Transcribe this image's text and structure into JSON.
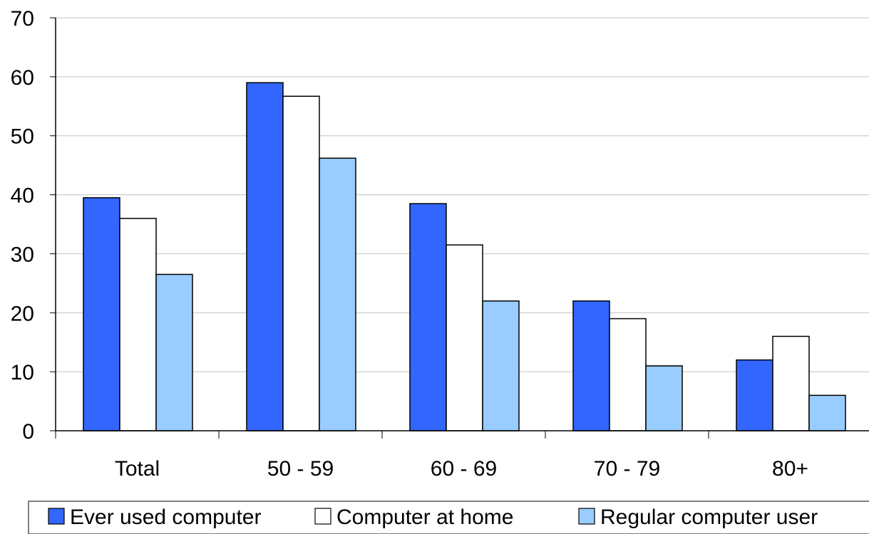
{
  "chart_data": {
    "type": "bar",
    "title": "",
    "xlabel": "",
    "ylabel": "",
    "categories": [
      "Total",
      "50 - 59",
      "60 - 69",
      "70 - 79",
      "80+"
    ],
    "ylim": [
      0,
      70
    ],
    "yticks": [
      0,
      10,
      20,
      30,
      40,
      50,
      60,
      70
    ],
    "grid": true,
    "legend_position": "bottom",
    "series": [
      {
        "name": "Ever used computer",
        "values": [
          39.5,
          59,
          38.5,
          22,
          12
        ],
        "color": "#3366ff"
      },
      {
        "name": "Computer at home",
        "values": [
          36,
          56.7,
          31.5,
          19,
          16
        ],
        "color": "#ffffff"
      },
      {
        "name": "Regular computer user",
        "values": [
          26.5,
          46.2,
          22,
          11,
          6
        ],
        "color": "#99ccff"
      }
    ]
  }
}
